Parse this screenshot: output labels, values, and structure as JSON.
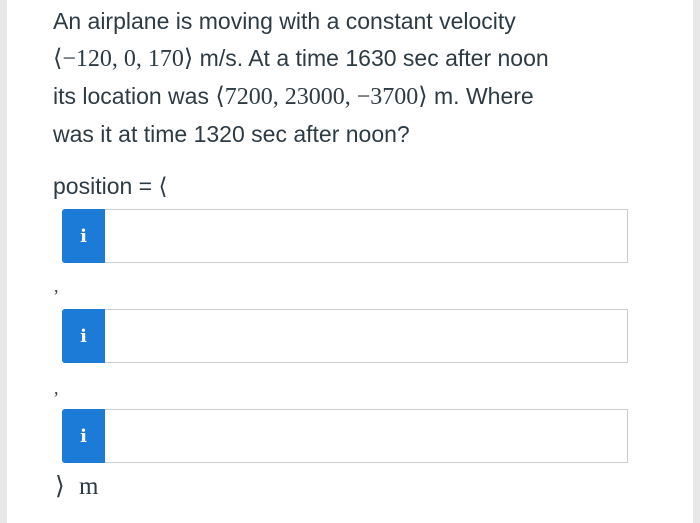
{
  "question": {
    "line1": "An airplane is moving with a constant velocity",
    "velocity_vector": "⟨−120, 0, 170⟩",
    "velocity_unit_text": " m/s. At a time 1630 sec after noon",
    "line3_prefix": "its location was ",
    "location_vector": "⟨7200, 23000, −3700⟩",
    "line3_suffix": " m. Where",
    "line4": "was it at time 1320 sec after noon?"
  },
  "answer": {
    "label": "position = ⟨",
    "separator": ",",
    "closing": "⟩",
    "unit": "m",
    "info_label": "i",
    "inputs": [
      {
        "value": "",
        "placeholder": ""
      },
      {
        "value": "",
        "placeholder": ""
      },
      {
        "value": "",
        "placeholder": ""
      }
    ]
  },
  "colors": {
    "info_button": "#1b7bd7",
    "text": "#2d3b45",
    "input_border": "#c7cdd1"
  },
  "icons": {
    "info": "info-icon"
  }
}
